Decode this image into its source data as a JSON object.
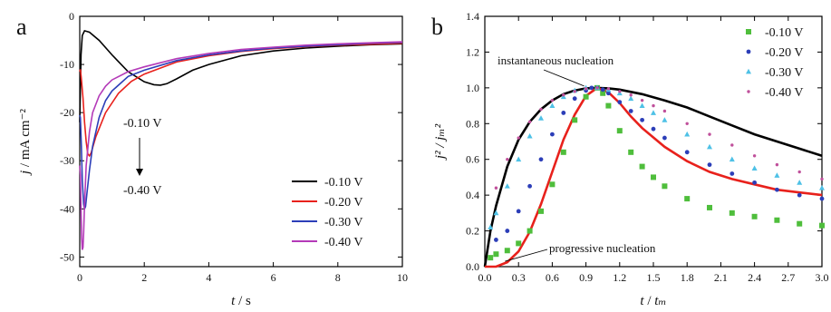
{
  "chart_data": [
    {
      "type": "line",
      "panel_label": "a",
      "xlabel": "t / s",
      "ylabel": "j / mA cm⁻²",
      "xlim": [
        0,
        10
      ],
      "ylim": [
        -52,
        0
      ],
      "xticks": [
        0,
        2,
        4,
        6,
        8,
        10
      ],
      "yticks": [
        0,
        -10,
        -20,
        -30,
        -40,
        -50
      ],
      "legend_position": "bottom-right",
      "annotation": {
        "top": "-0.10 V",
        "bottom": "-0.40 V"
      },
      "series": [
        {
          "name": "-0.10 V",
          "color": "#000000",
          "x": [
            0.0,
            0.04,
            0.08,
            0.15,
            0.3,
            0.6,
            1.0,
            1.5,
            2.0,
            2.3,
            2.5,
            2.7,
            3.0,
            3.5,
            4.0,
            5.0,
            6.0,
            7.0,
            8.0,
            9.0,
            10.0
          ],
          "y": [
            -22.0,
            -8.0,
            -4.0,
            -3.0,
            -3.3,
            -5.0,
            -8.0,
            -11.5,
            -13.6,
            -14.2,
            -14.3,
            -14.0,
            -13.0,
            -11.2,
            -10.0,
            -8.2,
            -7.2,
            -6.6,
            -6.2,
            -5.9,
            -5.7
          ]
        },
        {
          "name": "-0.20 V",
          "color": "#e8211c",
          "x": [
            0.0,
            0.02,
            0.05,
            0.1,
            0.15,
            0.2,
            0.25,
            0.3,
            0.35,
            0.5,
            0.8,
            1.2,
            1.6,
            2.0,
            3.0,
            4.0,
            5.0,
            6.0,
            7.0,
            8.0,
            9.0,
            10.0
          ],
          "y": [
            -11.5,
            -11.0,
            -13.0,
            -17.0,
            -22.0,
            -26.0,
            -28.6,
            -29.0,
            -28.4,
            -25.0,
            -20.0,
            -16.0,
            -13.5,
            -12.0,
            -9.5,
            -8.2,
            -7.3,
            -6.7,
            -6.3,
            -6.0,
            -5.8,
            -5.6
          ]
        },
        {
          "name": "-0.30 V",
          "color": "#2c3eb8",
          "x": [
            0.0,
            0.02,
            0.05,
            0.08,
            0.12,
            0.15,
            0.18,
            0.22,
            0.3,
            0.4,
            0.6,
            0.8,
            1.0,
            1.5,
            2.0,
            3.0,
            4.0,
            5.0,
            6.0,
            7.0,
            8.0,
            9.0,
            10.0
          ],
          "y": [
            -20.5,
            -21.0,
            -27.0,
            -34.0,
            -39.0,
            -40.0,
            -39.5,
            -37.0,
            -32.0,
            -27.0,
            -21.0,
            -17.5,
            -15.5,
            -12.5,
            -11.2,
            -9.2,
            -8.0,
            -7.2,
            -6.6,
            -6.2,
            -5.9,
            -5.6,
            -5.4
          ]
        },
        {
          "name": "-0.40 V",
          "color": "#b43ab8",
          "x": [
            0.0,
            0.02,
            0.04,
            0.06,
            0.08,
            0.1,
            0.12,
            0.15,
            0.2,
            0.3,
            0.4,
            0.6,
            0.8,
            1.0,
            1.5,
            2.0,
            3.0,
            4.0,
            5.0,
            6.0,
            7.0,
            8.0,
            9.0,
            10.0
          ],
          "y": [
            -31.0,
            -33.0,
            -40.0,
            -46.0,
            -48.5,
            -48.0,
            -45.0,
            -39.0,
            -31.0,
            -24.0,
            -20.0,
            -16.5,
            -14.5,
            -13.2,
            -11.5,
            -10.5,
            -8.8,
            -7.7,
            -6.9,
            -6.4,
            -6.0,
            -5.7,
            -5.5,
            -5.3
          ]
        }
      ]
    },
    {
      "type": "scatter",
      "panel_label": "b",
      "xlabel": "t / tₘ",
      "ylabel": "j² / jₘ²",
      "xlim": [
        0,
        3
      ],
      "ylim": [
        0,
        1.4
      ],
      "xticks": [
        0.0,
        0.3,
        0.6,
        0.9,
        1.2,
        1.5,
        1.8,
        2.1,
        2.4,
        2.7,
        3.0
      ],
      "yticks": [
        0.0,
        0.2,
        0.4,
        0.6,
        0.8,
        1.0,
        1.2,
        1.4
      ],
      "legend_position": "top-right",
      "annotations": [
        {
          "text": "instantaneous nucleation",
          "at": [
            0.9,
            1.0
          ]
        },
        {
          "text": "progressive nucleation",
          "at": [
            0.18,
            0.02
          ]
        }
      ],
      "theory": [
        {
          "label": "instantaneous nucleation",
          "color": "#000000",
          "x": [
            0.0,
            0.05,
            0.1,
            0.2,
            0.3,
            0.4,
            0.5,
            0.6,
            0.7,
            0.8,
            0.9,
            1.0,
            1.1,
            1.2,
            1.4,
            1.6,
            1.8,
            2.0,
            2.2,
            2.4,
            2.6,
            2.8,
            3.0
          ],
          "y": [
            0.0,
            0.2,
            0.34,
            0.56,
            0.71,
            0.81,
            0.88,
            0.93,
            0.965,
            0.985,
            0.997,
            1.0,
            0.997,
            0.99,
            0.965,
            0.93,
            0.89,
            0.84,
            0.79,
            0.74,
            0.7,
            0.66,
            0.62
          ]
        },
        {
          "label": "progressive nucleation",
          "color": "#e8211c",
          "x": [
            0.0,
            0.1,
            0.2,
            0.3,
            0.4,
            0.5,
            0.6,
            0.7,
            0.8,
            0.9,
            1.0,
            1.1,
            1.2,
            1.3,
            1.4,
            1.6,
            1.8,
            2.0,
            2.2,
            2.4,
            2.6,
            2.8,
            3.0
          ],
          "y": [
            0.0,
            0.0,
            0.025,
            0.085,
            0.195,
            0.35,
            0.53,
            0.71,
            0.85,
            0.955,
            1.0,
            0.975,
            0.915,
            0.84,
            0.775,
            0.67,
            0.59,
            0.53,
            0.49,
            0.46,
            0.43,
            0.415,
            0.4
          ]
        }
      ],
      "series": [
        {
          "name": "-0.10 V",
          "color": "#4fbe3c",
          "marker": "square",
          "x": [
            0.05,
            0.1,
            0.2,
            0.3,
            0.4,
            0.5,
            0.6,
            0.7,
            0.8,
            0.9,
            1.0,
            1.05,
            1.1,
            1.2,
            1.3,
            1.4,
            1.5,
            1.6,
            1.8,
            2.0,
            2.2,
            2.4,
            2.6,
            2.8,
            3.0
          ],
          "y": [
            0.05,
            0.07,
            0.09,
            0.13,
            0.2,
            0.31,
            0.46,
            0.64,
            0.82,
            0.95,
            1.0,
            0.97,
            0.9,
            0.76,
            0.64,
            0.56,
            0.5,
            0.45,
            0.38,
            0.33,
            0.3,
            0.28,
            0.26,
            0.24,
            0.23
          ]
        },
        {
          "name": "-0.20 V",
          "color": "#2c3eb8",
          "marker": "circle",
          "x": [
            0.1,
            0.2,
            0.3,
            0.4,
            0.5,
            0.6,
            0.7,
            0.8,
            0.9,
            0.95,
            1.0,
            1.05,
            1.1,
            1.2,
            1.3,
            1.4,
            1.5,
            1.6,
            1.8,
            2.0,
            2.2,
            2.4,
            2.6,
            2.8,
            3.0
          ],
          "y": [
            0.15,
            0.2,
            0.31,
            0.45,
            0.6,
            0.74,
            0.86,
            0.94,
            0.985,
            1.0,
            1.0,
            0.99,
            0.97,
            0.92,
            0.87,
            0.82,
            0.77,
            0.72,
            0.64,
            0.57,
            0.52,
            0.47,
            0.43,
            0.4,
            0.38
          ]
        },
        {
          "name": "-0.30 V",
          "color": "#4ec1e6",
          "marker": "triangle",
          "x": [
            0.05,
            0.1,
            0.2,
            0.3,
            0.4,
            0.5,
            0.6,
            0.7,
            0.8,
            0.9,
            1.0,
            1.1,
            1.2,
            1.3,
            1.4,
            1.5,
            1.6,
            1.8,
            2.0,
            2.2,
            2.4,
            2.6,
            2.8,
            3.0
          ],
          "y": [
            0.22,
            0.3,
            0.45,
            0.6,
            0.73,
            0.83,
            0.9,
            0.95,
            0.985,
            1.0,
            1.0,
            0.99,
            0.97,
            0.94,
            0.9,
            0.86,
            0.82,
            0.74,
            0.67,
            0.6,
            0.55,
            0.51,
            0.47,
            0.44
          ]
        },
        {
          "name": "-0.40 V",
          "color": "#c0509b",
          "marker": "dot",
          "x": [
            0.1,
            0.2,
            0.3,
            0.4,
            0.5,
            0.6,
            0.7,
            0.8,
            0.9,
            1.0,
            1.1,
            1.2,
            1.3,
            1.4,
            1.5,
            1.6,
            1.8,
            2.0,
            2.2,
            2.4,
            2.6,
            2.8,
            3.0
          ],
          "y": [
            0.44,
            0.6,
            0.72,
            0.81,
            0.88,
            0.93,
            0.96,
            0.98,
            0.995,
            1.0,
            0.995,
            0.98,
            0.96,
            0.93,
            0.9,
            0.87,
            0.8,
            0.74,
            0.68,
            0.62,
            0.57,
            0.53,
            0.49
          ]
        }
      ]
    }
  ]
}
